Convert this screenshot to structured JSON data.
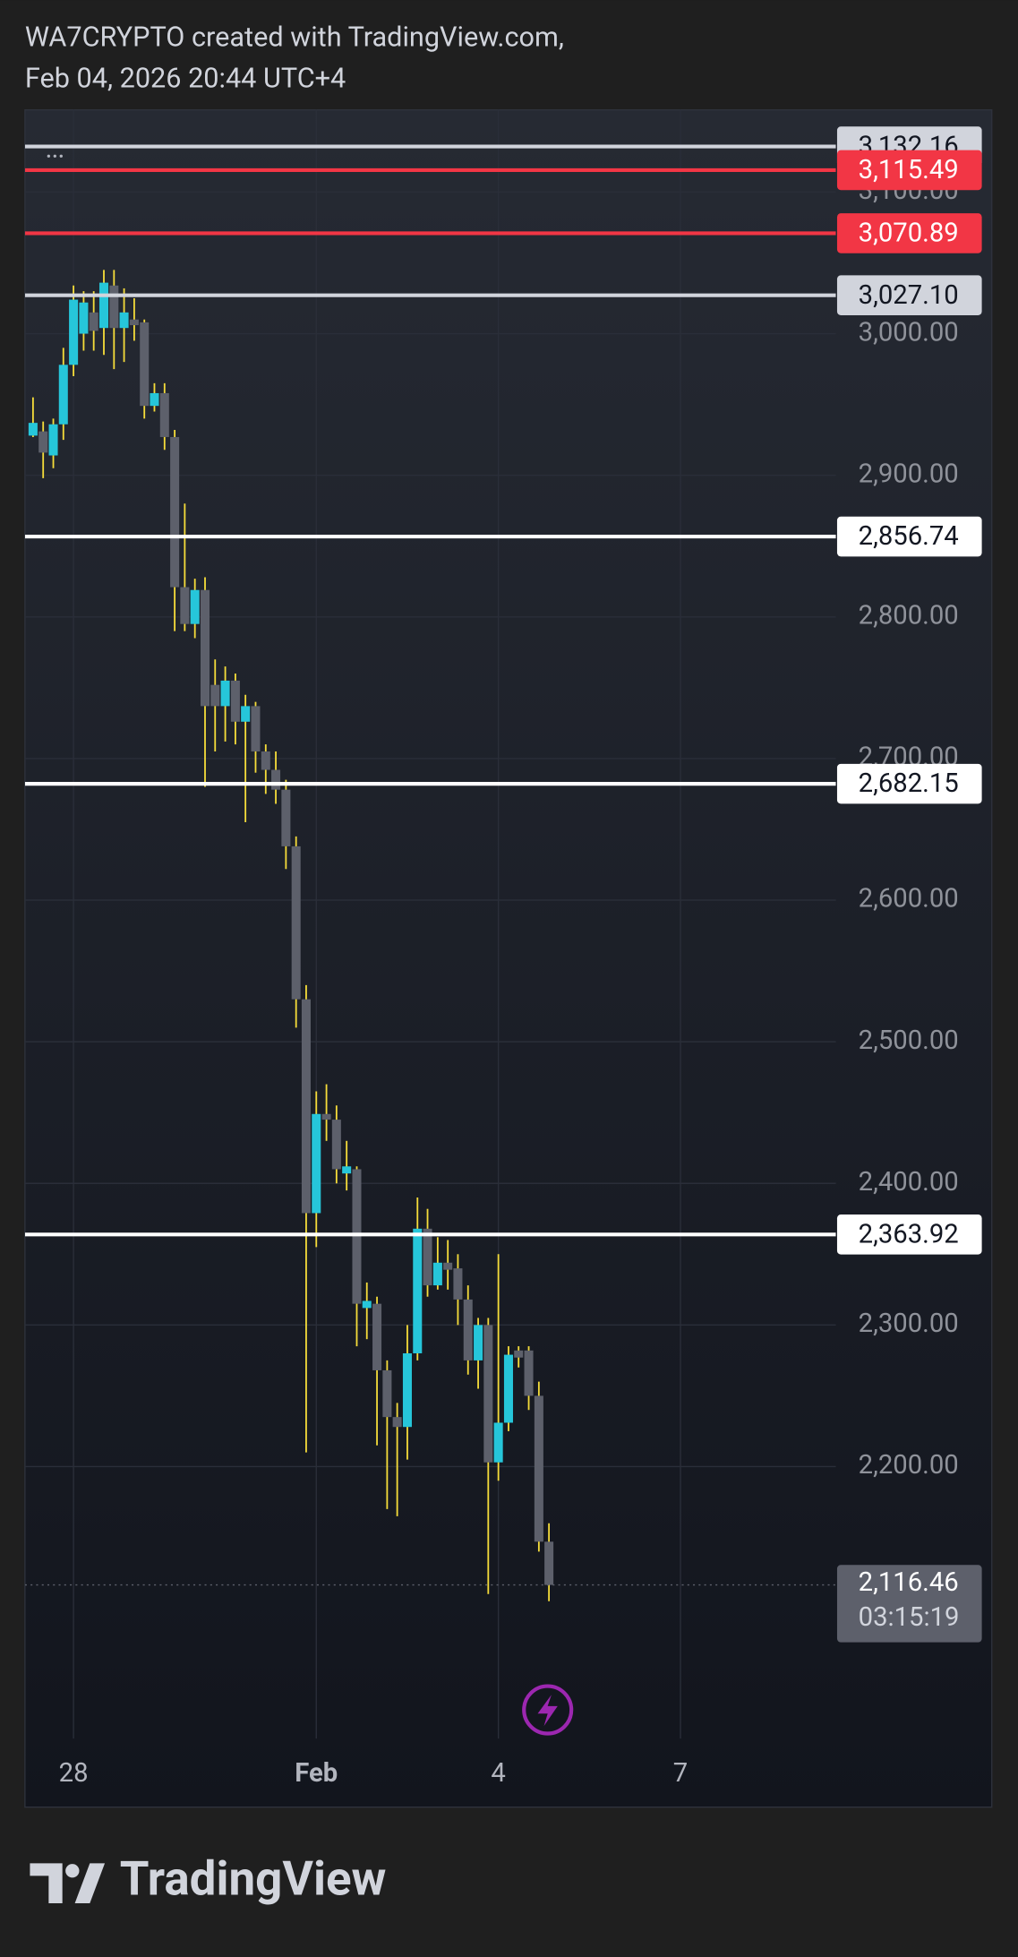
{
  "header": {
    "line1": "WA7CRYPTO created with TradingView.com,",
    "line2": "Feb 04, 2026 20:44 UTC+4"
  },
  "footer": {
    "brand": "TradingView"
  },
  "chart_data": {
    "type": "candlestick",
    "x": [
      27.333,
      27.5,
      27.667,
      27.833,
      28,
      28.167,
      28.333,
      28.5,
      28.667,
      28.833,
      29,
      29.167,
      29.333,
      29.5,
      29.667,
      29.833,
      30,
      30.167,
      30.333,
      30.5,
      30.667,
      30.833,
      31,
      31.167,
      31.333,
      31.5,
      31.667,
      31.833,
      32,
      32.167,
      32.333,
      32.5,
      32.667,
      32.833,
      33,
      33.167,
      33.333,
      33.5,
      33.667,
      33.833,
      34,
      34.167,
      34.333,
      34.5,
      34.667,
      34.833,
      35,
      35.167,
      35.333,
      35.5,
      35.667,
      35.833
    ],
    "open": [
      2928,
      2931,
      2914,
      2936,
      2978,
      3000,
      3015,
      3004,
      3034,
      3004,
      3010,
      3008,
      2949,
      2958,
      2927,
      2821,
      2795,
      2819,
      2752,
      2737,
      2755,
      2726,
      2737,
      2705,
      2692,
      2678,
      2638,
      2530,
      2379,
      2449,
      2445,
      2407,
      2410,
      2312,
      2315,
      2268,
      2235,
      2228,
      2280,
      2368,
      2328,
      2344,
      2340,
      2318,
      2275,
      2300,
      2203,
      2231,
      2282,
      2282,
      2250,
      2147
    ],
    "high": [
      2955,
      2938,
      2940,
      2990,
      3034,
      3030,
      3030,
      3045,
      3045,
      3032,
      3025,
      3010,
      2965,
      2965,
      2932,
      2880,
      2827,
      2828,
      2770,
      2765,
      2760,
      2745,
      2740,
      2710,
      2705,
      2685,
      2645,
      2540,
      2465,
      2470,
      2455,
      2430,
      2412,
      2330,
      2320,
      2275,
      2245,
      2300,
      2390,
      2382,
      2362,
      2360,
      2350,
      2328,
      2305,
      2305,
      2350,
      2285,
      2285,
      2285,
      2260,
      2160
    ],
    "low": [
      2927,
      2898,
      2905,
      2925,
      2970,
      2988,
      2988,
      2985,
      2975,
      2980,
      2995,
      2940,
      2945,
      2918,
      2790,
      2790,
      2785,
      2680,
      2705,
      2712,
      2710,
      2655,
      2690,
      2675,
      2668,
      2622,
      2510,
      2210,
      2355,
      2430,
      2400,
      2395,
      2285,
      2290,
      2215,
      2170,
      2165,
      2205,
      2275,
      2320,
      2325,
      2325,
      2300,
      2265,
      2255,
      2110,
      2190,
      2225,
      2270,
      2240,
      2140,
      2105
    ],
    "close": [
      2937,
      2916,
      2936,
      2978,
      3024,
      3022,
      3002,
      3036,
      3004,
      3015,
      3006,
      2949,
      2958,
      2927,
      2821,
      2795,
      2819,
      2737,
      2737,
      2755,
      2726,
      2737,
      2705,
      2692,
      2678,
      2638,
      2530,
      2379,
      2449,
      2445,
      2410,
      2412,
      2315,
      2317,
      2268,
      2235,
      2228,
      2280,
      2368,
      2328,
      2344,
      2339,
      2318,
      2275,
      2300,
      2203,
      2231,
      2279,
      2277,
      2250,
      2147,
      2116.46
    ],
    "up_color": "#26c6da",
    "down_color": "#5d606b",
    "wick_color": "#f5dc3a",
    "xlim": [
      27.2,
      40.56
    ],
    "xticks": [
      28,
      {
        "value": 32,
        "label": "Feb"
      },
      {
        "value": 35,
        "label": "4"
      },
      {
        "value": 38,
        "label": "7"
      }
    ],
    "ylim": [
      2008,
      3158
    ],
    "yticks": [
      {
        "value": 2200,
        "label": "2,200.00"
      },
      {
        "value": 2300,
        "label": "2,300.00"
      },
      {
        "value": 2400,
        "label": "2,400.00"
      },
      {
        "value": 2500,
        "label": "2,500.00"
      },
      {
        "value": 2600,
        "label": "2,600.00"
      },
      {
        "value": 2700,
        "label": "2,700.00"
      },
      {
        "value": 2800,
        "label": "2,800.00"
      },
      {
        "value": 2900,
        "label": "2,900.00"
      },
      {
        "value": 3000,
        "label": "3,000.00"
      },
      {
        "value": 3100,
        "label": "3,100.00"
      }
    ],
    "grid": true,
    "price_lines": [
      {
        "value": 3132.16,
        "label": "3,132.16",
        "color": "#d1d4dc",
        "text_color": "#131722"
      },
      {
        "value": 3115.49,
        "label": "3,115.49",
        "color": "#f23645",
        "text_color": "#ffffff"
      },
      {
        "value": 3070.89,
        "label": "3,070.89",
        "color": "#f23645",
        "text_color": "#ffffff"
      },
      {
        "value": 3027.1,
        "label": "3,027.10",
        "color": "#d1d4dc",
        "text_color": "#131722"
      },
      {
        "value": 2856.74,
        "label": "2,856.74",
        "color": "#ffffff",
        "text_color": "#131722"
      },
      {
        "value": 2682.15,
        "label": "2,682.15",
        "color": "#ffffff",
        "text_color": "#131722"
      },
      {
        "value": 2363.92,
        "label": "2,363.92",
        "color": "#ffffff",
        "text_color": "#131722"
      }
    ],
    "last_price": {
      "value": 2116.46,
      "label": "2,116.46",
      "countdown": "03:15:19",
      "color": "#5d606b"
    }
  }
}
